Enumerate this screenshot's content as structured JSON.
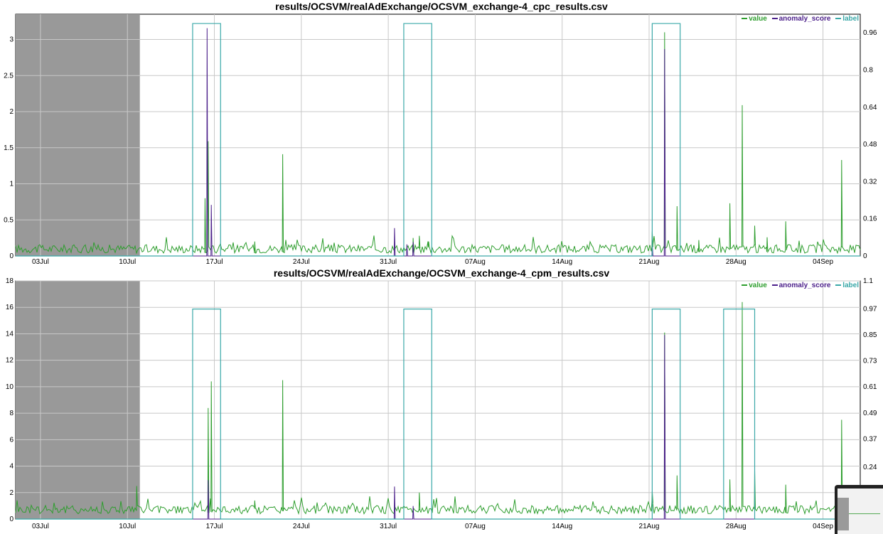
{
  "chart_data": [
    {
      "type": "line",
      "title": "results/OCSVM/realAdExchange/OCSVM_exchange-4_cpc_results.csv",
      "x_type": "date",
      "x_range": [
        "2011-07-01",
        "2011-09-07"
      ],
      "x_ticks": [
        "03Jul",
        "10Jul",
        "17Jul",
        "24Jul",
        "31Jul",
        "07Aug",
        "14Aug",
        "21Aug",
        "28Aug",
        "04Sep"
      ],
      "x_tick_dates": [
        "2011-07-03",
        "2011-07-10",
        "2011-07-17",
        "2011-07-24",
        "2011-07-31",
        "2011-08-07",
        "2011-08-14",
        "2011-08-21",
        "2011-08-28",
        "2011-09-04"
      ],
      "y_left_range": [
        0,
        3.35
      ],
      "y_left_ticks": [
        "0",
        "0.5",
        "1",
        "1.5",
        "2",
        "2.5",
        "3"
      ],
      "y_right_range": [
        0,
        1.04
      ],
      "y_right_ticks": [
        "0",
        "0.16",
        "0.32",
        "0.48",
        "0.64",
        "0.8",
        "0.96"
      ],
      "shaded_region": [
        "2011-07-01",
        "2011-07-11"
      ],
      "grid": true,
      "legend_position": "top-right",
      "series": [
        {
          "name": "value",
          "color": "#2e9e2e",
          "axis": "left",
          "baseline": 0.04,
          "spikes": [
            [
              "2011-07-16T12:00",
              1.59
            ],
            [
              "2011-07-16T06:00",
              0.8
            ],
            [
              "2011-07-20T06:00",
              0.2
            ],
            [
              "2011-07-22T12:00",
              1.41
            ],
            [
              "2011-08-02T00:00",
              0.25
            ],
            [
              "2011-08-02T12:00",
              0.28
            ],
            [
              "2011-08-03T06:00",
              0.2
            ],
            [
              "2011-08-21T06:00",
              0.34
            ],
            [
              "2011-08-22T06:00",
              3.1
            ],
            [
              "2011-08-23T06:00",
              0.69
            ],
            [
              "2011-08-25T00:00",
              0.22
            ],
            [
              "2011-08-27T12:00",
              0.73
            ],
            [
              "2011-08-28T12:00",
              2.09
            ],
            [
              "2011-08-29T12:00",
              0.42
            ],
            [
              "2011-08-30T12:00",
              0.26
            ],
            [
              "2011-09-01T00:00",
              0.48
            ],
            [
              "2011-09-05T12:00",
              1.33
            ]
          ]
        },
        {
          "name": "anomaly_score",
          "color": "#4b1f8a",
          "axis": "right",
          "baseline": 0.0,
          "spikes": [
            [
              "2011-07-16T10:00",
              0.98
            ],
            [
              "2011-07-16T18:00",
              0.22
            ],
            [
              "2011-07-31T12:00",
              0.12
            ],
            [
              "2011-08-01T12:00",
              0.05
            ],
            [
              "2011-08-02T00:00",
              0.06
            ],
            [
              "2011-08-21T06:00",
              0.05
            ],
            [
              "2011-08-22T06:00",
              0.89
            ]
          ]
        },
        {
          "name": "label",
          "color": "#3aa8a8",
          "axis": "right",
          "windows": [
            [
              "2011-07-15T06:00",
              "2011-07-17T12:00"
            ],
            [
              "2011-08-01T06:00",
              "2011-08-03T12:00"
            ],
            [
              "2011-08-21T06:00",
              "2011-08-23T12:00"
            ]
          ],
          "on_value": 1.0
        }
      ]
    },
    {
      "type": "line",
      "title": "results/OCSVM/realAdExchange/OCSVM_exchange-4_cpm_results.csv",
      "x_type": "date",
      "x_range": [
        "2011-07-01",
        "2011-09-07"
      ],
      "x_ticks": [
        "03Jul",
        "10Jul",
        "17Jul",
        "24Jul",
        "31Jul",
        "07Aug",
        "14Aug",
        "21Aug",
        "28Aug",
        "04Sep"
      ],
      "x_tick_dates": [
        "2011-07-03",
        "2011-07-10",
        "2011-07-17",
        "2011-07-24",
        "2011-07-31",
        "2011-08-07",
        "2011-08-14",
        "2011-08-21",
        "2011-08-28",
        "2011-09-04"
      ],
      "y_left_range": [
        0,
        18
      ],
      "y_left_ticks": [
        "0",
        "2",
        "4",
        "6",
        "8",
        "10",
        "12",
        "14",
        "16",
        "18"
      ],
      "y_right_range": [
        0,
        1.1
      ],
      "y_right_ticks": [
        "0.24",
        "0.37",
        "0.49",
        "0.61",
        "0.73",
        "0.85",
        "0.97",
        "1.1"
      ],
      "y_right_tick_values": [
        0.24,
        0.37,
        0.49,
        0.61,
        0.73,
        0.85,
        0.97,
        1.1
      ],
      "shaded_region": [
        "2011-07-01",
        "2011-07-11"
      ],
      "grid": true,
      "legend_position": "top-right",
      "series": [
        {
          "name": "value",
          "color": "#2e9e2e",
          "axis": "left",
          "baseline": 0.4,
          "spikes": [
            [
              "2011-07-10T18:00",
              2.5
            ],
            [
              "2011-07-16T12:00",
              8.4
            ],
            [
              "2011-07-16T18:00",
              10.4
            ],
            [
              "2011-07-20T06:00",
              1.4
            ],
            [
              "2011-07-22T12:00",
              10.5
            ],
            [
              "2011-08-02T12:00",
              2.0
            ],
            [
              "2011-08-21T06:00",
              2.1
            ],
            [
              "2011-08-22T06:00",
              14.1
            ],
            [
              "2011-08-23T06:00",
              3.3
            ],
            [
              "2011-08-27T12:00",
              3.0
            ],
            [
              "2011-08-28T12:00",
              16.4
            ],
            [
              "2011-08-29T12:00",
              3.7
            ],
            [
              "2011-09-01T00:00",
              2.6
            ],
            [
              "2011-09-05T12:00",
              7.5
            ]
          ]
        },
        {
          "name": "anomaly_score",
          "color": "#4b1f8a",
          "axis": "right",
          "baseline": 0.0,
          "spikes": [
            [
              "2011-07-16T12:00",
              0.18
            ],
            [
              "2011-07-31T12:00",
              0.15
            ],
            [
              "2011-08-02T00:00",
              0.06
            ],
            [
              "2011-08-22T06:00",
              0.85
            ]
          ]
        },
        {
          "name": "label",
          "color": "#3aa8a8",
          "axis": "right",
          "windows": [
            [
              "2011-07-15T06:00",
              "2011-07-17T12:00"
            ],
            [
              "2011-08-01T06:00",
              "2011-08-03T12:00"
            ],
            [
              "2011-08-21T06:00",
              "2011-08-23T12:00"
            ],
            [
              "2011-08-27T00:00",
              "2011-08-29T12:00"
            ]
          ],
          "on_value": 0.97
        }
      ]
    }
  ]
}
